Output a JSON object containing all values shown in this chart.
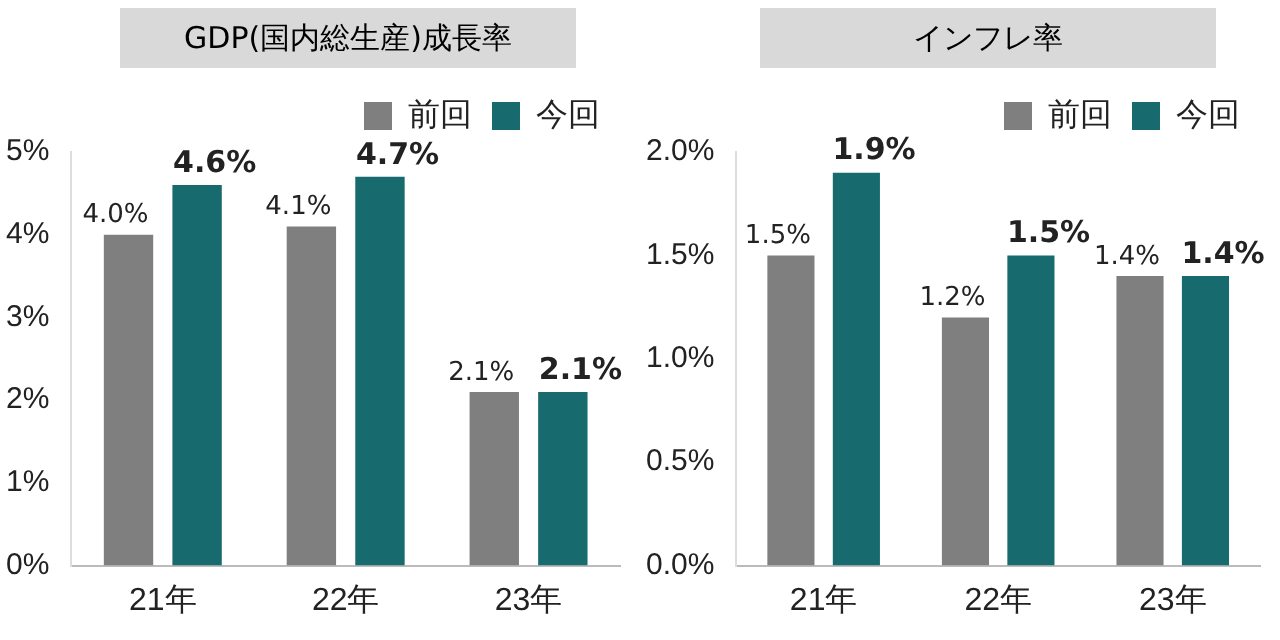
{
  "chart_data": [
    {
      "type": "bar",
      "title": "GDP(国内総生産)成長率",
      "categories": [
        "21年",
        "22年",
        "23年"
      ],
      "series": [
        {
          "name": "前回",
          "color": "#7f7f7f",
          "values": [
            4.0,
            4.1,
            2.1
          ],
          "value_labels": [
            "4.0%",
            "4.1%",
            "2.1%"
          ]
        },
        {
          "name": "今回",
          "color": "#176a6d",
          "values": [
            4.6,
            4.7,
            2.1
          ],
          "value_labels": [
            "4.6%",
            "4.7%",
            "2.1%"
          ]
        }
      ],
      "ylim": [
        0,
        5
      ],
      "yticks": [
        {
          "value": 0,
          "label": "0%"
        },
        {
          "value": 1,
          "label": "1%"
        },
        {
          "value": 2,
          "label": "2%"
        },
        {
          "value": 3,
          "label": "3%"
        },
        {
          "value": 4,
          "label": "4%"
        },
        {
          "value": 5,
          "label": "5%"
        }
      ],
      "grid": false,
      "legend": "top right"
    },
    {
      "type": "bar",
      "title": "インフレ率",
      "categories": [
        "21年",
        "22年",
        "23年"
      ],
      "series": [
        {
          "name": "前回",
          "color": "#7f7f7f",
          "values": [
            1.5,
            1.2,
            1.4
          ],
          "value_labels": [
            "1.5%",
            "1.2%",
            "1.4%"
          ]
        },
        {
          "name": "今回",
          "color": "#176a6d",
          "values": [
            1.9,
            1.5,
            1.4
          ],
          "value_labels": [
            "1.9%",
            "1.5%",
            "1.4%"
          ]
        }
      ],
      "ylim": [
        0,
        2
      ],
      "yticks": [
        {
          "value": 0,
          "label": "0.0%"
        },
        {
          "value": 0.5,
          "label": "0.5%"
        },
        {
          "value": 1,
          "label": "1.0%"
        },
        {
          "value": 1.5,
          "label": "1.5%"
        },
        {
          "value": 2,
          "label": "2.0%"
        }
      ],
      "grid": false,
      "legend": "top right"
    }
  ]
}
